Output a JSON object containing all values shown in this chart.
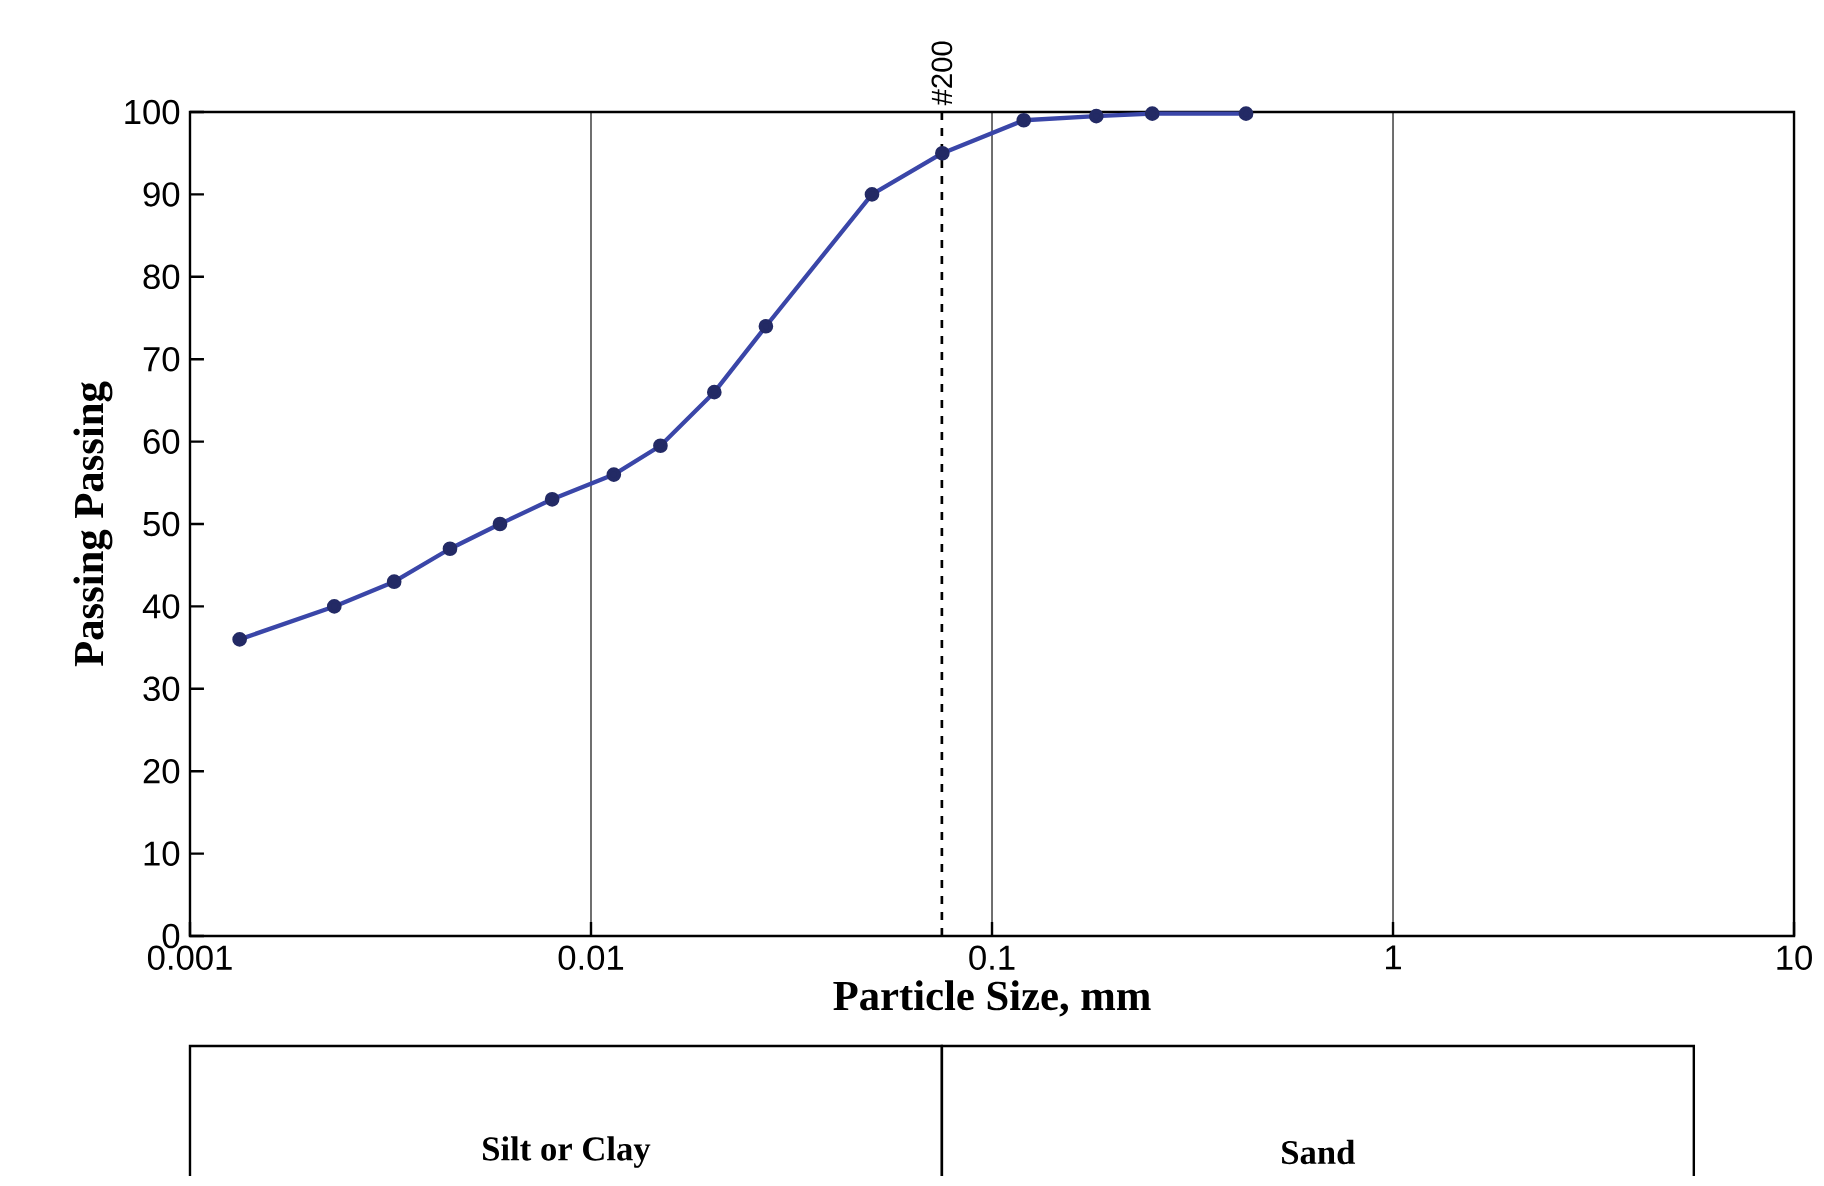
{
  "chart_data": {
    "type": "line",
    "xlabel": "Particle Size, mm",
    "ylabel": "Passing Passing",
    "log": "x",
    "grid": "x",
    "marker": "circle",
    "line_style": "solid",
    "xlim": [
      0.001,
      10
    ],
    "xticks": [
      0.001,
      0.01,
      0.1,
      1,
      10
    ],
    "ylim": [
      0,
      100
    ],
    "yticks": [
      0,
      10,
      20,
      30,
      40,
      50,
      60,
      70,
      80,
      90,
      100
    ],
    "series": [
      {
        "color": "#3a46a8",
        "x": [
          0.00133,
          0.00229,
          0.00323,
          0.00445,
          0.00593,
          0.008,
          0.0114,
          0.0149,
          0.0203,
          0.0273,
          0.0502,
          0.0752,
          0.12,
          0.182,
          0.251,
          0.43
        ],
        "values": [
          36,
          40,
          43,
          47,
          50,
          53,
          56,
          59.5,
          66,
          74,
          90,
          95,
          99,
          99.5,
          99.8,
          99.8
        ]
      }
    ],
    "ref_lines": [
      {
        "axis": "x",
        "value": 0.075,
        "line_style": "dashed"
      }
    ],
    "annotations": [
      {
        "text": "#200",
        "x": 0.075,
        "y": 100
      },
      "Silt or Clay",
      "Sand"
    ]
  }
}
